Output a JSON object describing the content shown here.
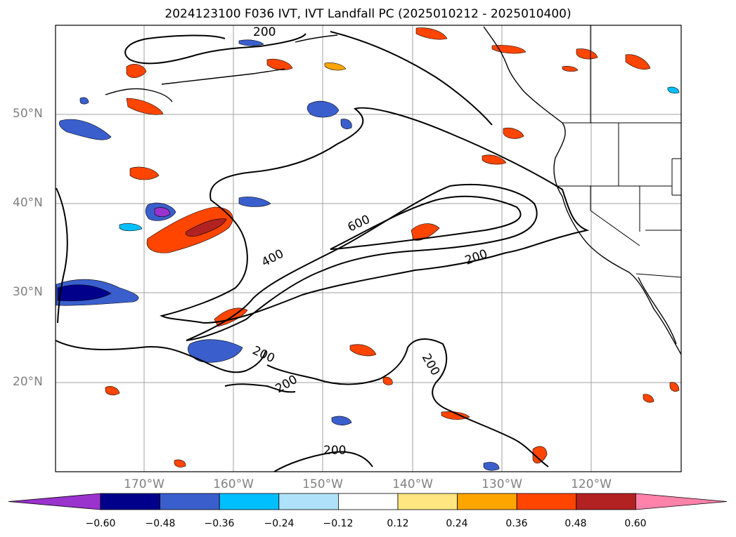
{
  "title": "2024123100 F036 IVT, IVT Landfall PC (2025010212 - 2025010400)",
  "lat_labels": [
    "50°N",
    "40°N",
    "30°N",
    "20°N"
  ],
  "lon_labels": [
    "170°W",
    "160°W",
    "150°W",
    "140°W",
    "130°W",
    "120°W"
  ],
  "contour_labels": [
    "200",
    "400",
    "600",
    "200",
    "200",
    "200",
    "200",
    "200"
  ],
  "colorbar": {
    "ticks": [
      "−0.60",
      "−0.48",
      "−0.36",
      "−0.24",
      "−0.12",
      "0.12",
      "0.24",
      "0.36",
      "0.48",
      "0.60"
    ],
    "colors": [
      "#9a32cd",
      "#00008b",
      "#3a5fcd",
      "#00bfff",
      "#afe2fa",
      "#ffffff",
      "#ffe680",
      "#ffa500",
      "#ff4500",
      "#b22222",
      "#ff82ab"
    ]
  },
  "colors": {
    "contour": "#000000",
    "grid": "#a0a0a0",
    "coast": "#000000",
    "label": "#808080"
  }
}
